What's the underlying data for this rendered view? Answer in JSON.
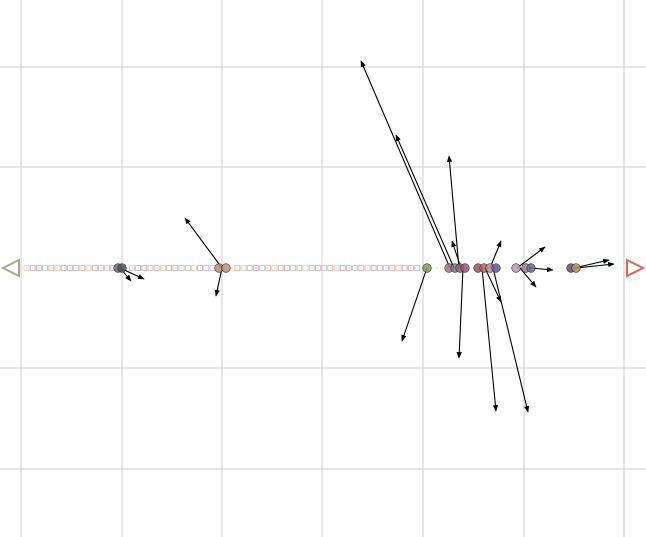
{
  "canvas": {
    "background": "#ffffff",
    "grid_color": "#cccccc"
  },
  "colors": {
    "arrow": "#000000",
    "left_marker": "#a8a890",
    "right_marker": "#e8644e",
    "square_colors": [
      "#f0c8a8",
      "#b0b8c8",
      "#f0a8a0",
      "#a8c8e0",
      "#e8b090"
    ]
  },
  "markers": {
    "left": {
      "shape": "triangle-left",
      "icon": "triangle-left-outline"
    },
    "right": {
      "shape": "triangle-right",
      "icon": "triangle-right-outline"
    }
  },
  "nodes": [
    {
      "id": "n1",
      "fill": "#6a6a8a"
    },
    {
      "id": "n2",
      "fill": "#555566"
    },
    {
      "id": "n3",
      "fill": "#b89060"
    },
    {
      "id": "n4",
      "fill": "#c09070"
    },
    {
      "id": "n5",
      "fill": "#7a9a5a"
    },
    {
      "id": "n6",
      "fill": "#b07080"
    },
    {
      "id": "n7",
      "fill": "#6a7aa0"
    },
    {
      "id": "n8",
      "fill": "#a06070"
    },
    {
      "id": "n9",
      "fill": "#8a5a7a"
    },
    {
      "id": "n10",
      "fill": "#9a5070"
    },
    {
      "id": "n11",
      "fill": "#b06a50"
    },
    {
      "id": "n12",
      "fill": "#c08a9a"
    },
    {
      "id": "n13",
      "fill": "#5a5a9a"
    },
    {
      "id": "n14",
      "fill": "#b89aa8"
    },
    {
      "id": "n15",
      "fill": "#a08090"
    }
  ]
}
